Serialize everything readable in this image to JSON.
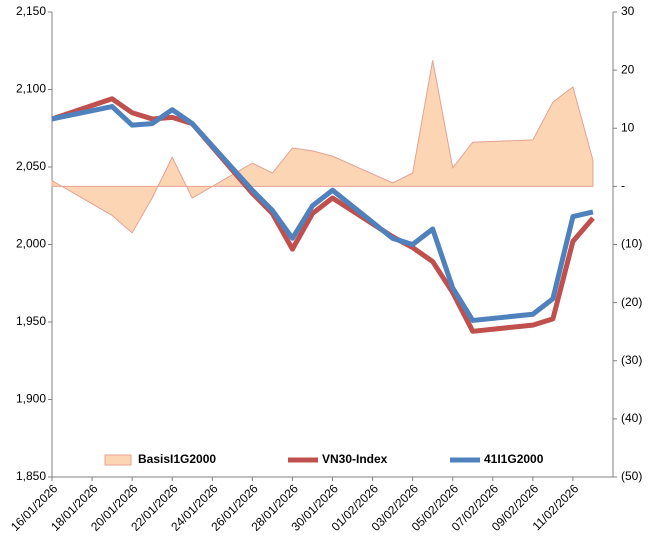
{
  "chart_data": {
    "type": "line",
    "x": [
      "16/01/2026",
      "19/01/2026",
      "20/01/2026",
      "21/01/2026",
      "22/01/2026",
      "23/01/2026",
      "26/01/2026",
      "27/01/2026",
      "28/01/2026",
      "29/01/2026",
      "30/01/2026",
      "02/02/2026",
      "03/02/2026",
      "04/02/2026",
      "05/02/2026",
      "06/02/2026",
      "09/02/2026",
      "10/02/2026",
      "11/02/2026",
      "12/02/2026"
    ],
    "xlim": [
      "16/01/2026",
      "13/02/2026"
    ],
    "xticks": [
      "16/01/2026",
      "18/01/2026",
      "20/01/2026",
      "22/01/2026",
      "24/01/2026",
      "26/01/2026",
      "28/01/2026",
      "30/01/2026",
      "01/02/2026",
      "03/02/2026",
      "05/02/2026",
      "07/02/2026",
      "09/02/2026",
      "11/02/2026"
    ],
    "ylim": [
      1850,
      2150
    ],
    "yticks": [
      {
        "value": 1850,
        "label": "1,850"
      },
      {
        "value": 1900,
        "label": "1,900"
      },
      {
        "value": 1950,
        "label": "1,950"
      },
      {
        "value": 2000,
        "label": "2,000"
      },
      {
        "value": 2050,
        "label": "2,050"
      },
      {
        "value": 2100,
        "label": "2,100"
      },
      {
        "value": 2150,
        "label": "2,150"
      }
    ],
    "y2lim": [
      -50,
      30
    ],
    "y2ticks": [
      {
        "value": -50,
        "label": "(50)"
      },
      {
        "value": -40,
        "label": "(40)"
      },
      {
        "value": -30,
        "label": "(30)"
      },
      {
        "value": -20,
        "label": "(20)"
      },
      {
        "value": -10,
        "label": "(10)"
      },
      {
        "value": 0,
        "label": "-"
      },
      10,
      20,
      30
    ],
    "series": [
      {
        "name": "BasisI1G2000",
        "type": "area",
        "axis": "y2",
        "color": "#fcd5b5",
        "values": [
          1,
          -5,
          -8,
          -2,
          5,
          -2,
          4,
          2.3,
          6.6,
          6.1,
          5.2,
          0.6,
          2.3,
          21.7,
          3.2,
          7.6,
          8,
          14.5,
          17.1,
          4.5
        ]
      },
      {
        "name": "VN30-Index",
        "type": "line",
        "color": "#c0504d",
        "values": [
          2081,
          2094,
          2085,
          2081,
          2082,
          2078,
          2033,
          2020,
          1997,
          2020,
          2030,
          2005,
          1998,
          1989,
          1969,
          1944,
          1948,
          1952,
          2002,
          2017
        ]
      },
      {
        "name": "41I1G2000",
        "type": "line",
        "color": "#4f81bd",
        "values": [
          2081,
          2089,
          2077,
          2078,
          2087,
          2078,
          2035,
          2022,
          2004,
          2025,
          2035,
          2004,
          2000,
          2010,
          1972,
          1951,
          1955,
          1965,
          2018,
          2021
        ]
      }
    ]
  }
}
